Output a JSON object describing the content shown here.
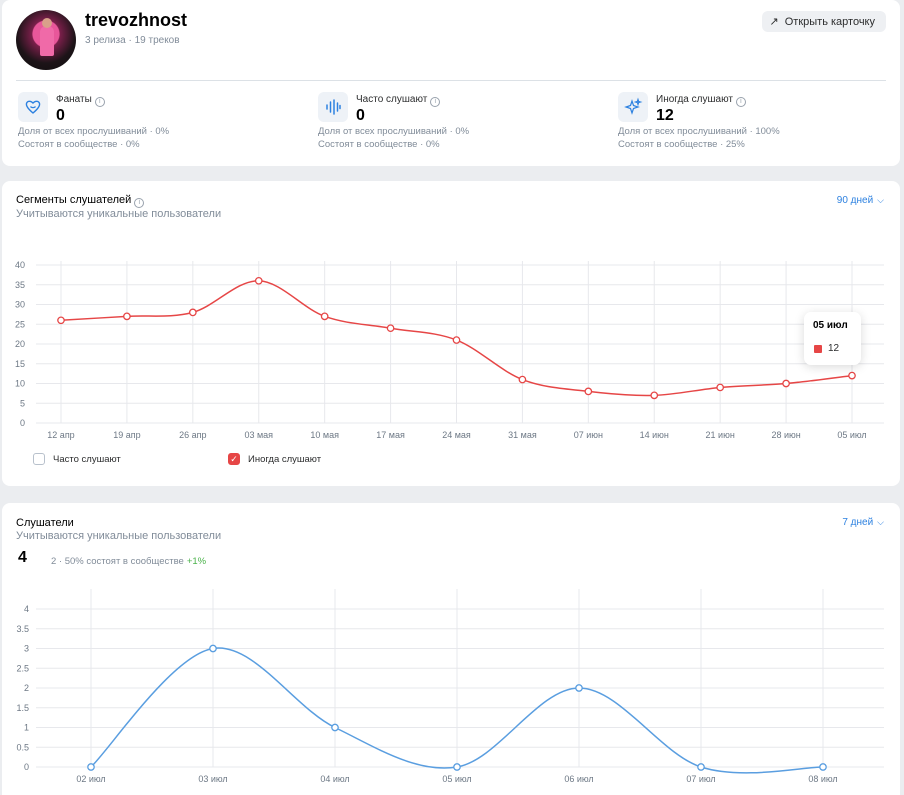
{
  "profile": {
    "artist_name": "trevozhnost",
    "meta": "3 релиза · 19 треков",
    "open_card_label": "Открыть карточку",
    "stats": [
      {
        "label": "Фанаты",
        "value": "0",
        "share": "Доля от всех прослушиваний · 0%",
        "community": "Состоят в сообществе · 0%",
        "icon": "heart-icon"
      },
      {
        "label": "Часто слушают",
        "value": "0",
        "share": "Доля от всех прослушиваний · 0%",
        "community": "Состоят в сообществе · 0%",
        "icon": "soundwave-icon"
      },
      {
        "label": "Иногда слушают",
        "value": "12",
        "share": "Доля от всех прослушиваний · 100%",
        "community": "Состоят в сообществе · 25%",
        "icon": "sparkle-icon"
      }
    ]
  },
  "segments": {
    "title": "Сегменты слушателей",
    "subtitle": "Учитываются уникальные пользователи",
    "period": "90 дней",
    "legend": [
      {
        "label": "Часто слушают",
        "checked": false
      },
      {
        "label": "Иногда слушают",
        "checked": true
      }
    ],
    "tooltip": {
      "date": "05 июл",
      "value": "12"
    }
  },
  "listeners": {
    "title": "Слушатели",
    "subtitle": "Учитываются уникальные пользователи",
    "period": "7 дней",
    "total": "4",
    "meta": "2 · 50% состоят в сообществе",
    "delta": "+1%"
  },
  "chart_data": [
    {
      "type": "line",
      "x": [
        "12 апр",
        "19 апр",
        "26 апр",
        "03 мая",
        "10 мая",
        "17 мая",
        "24 мая",
        "31 мая",
        "07 июн",
        "14 июн",
        "21 июн",
        "28 июн",
        "05 июл"
      ],
      "series": [
        {
          "name": "Иногда слушают",
          "values": [
            26,
            27,
            28,
            36,
            27,
            24,
            21,
            11,
            8,
            7,
            9,
            10,
            12
          ],
          "color": "#e64646"
        }
      ],
      "yticks": [
        0,
        5,
        10,
        15,
        20,
        25,
        30,
        35,
        40
      ],
      "ylim": [
        0,
        40
      ],
      "grid": true
    },
    {
      "type": "line",
      "x": [
        "02 июл",
        "03 июл",
        "04 июл",
        "05 июл",
        "06 июл",
        "07 июл",
        "08 июл"
      ],
      "series": [
        {
          "values": [
            0,
            3,
            1,
            0,
            2,
            0,
            0
          ],
          "color": "#5a9ee0"
        }
      ],
      "yticks": [
        0,
        0.5,
        1,
        1.5,
        2,
        2.5,
        3,
        3.5,
        4
      ],
      "ylim": [
        0,
        4
      ],
      "grid": true
    }
  ]
}
